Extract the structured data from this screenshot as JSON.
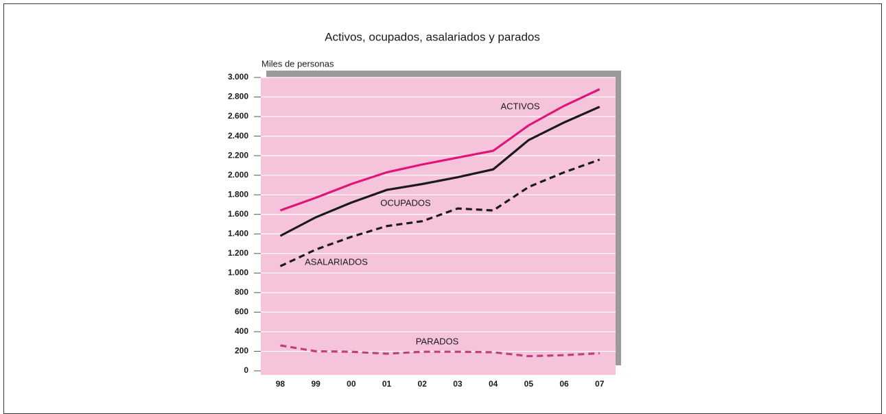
{
  "chart_data": {
    "type": "line",
    "title": "Activos, ocupados, asalariados y parados",
    "y_label": "Miles de personas",
    "categories": [
      "98",
      "99",
      "00",
      "01",
      "02",
      "03",
      "04",
      "05",
      "06",
      "07"
    ],
    "series": [
      {
        "name": "ACTIVOS",
        "color": "#e0157a",
        "dash": false,
        "values": [
          1640,
          1770,
          1910,
          2030,
          2110,
          2180,
          2250,
          2510,
          2710,
          2880
        ]
      },
      {
        "name": "OCUPADOS",
        "color": "#1a1a1a",
        "dash": false,
        "values": [
          1380,
          1570,
          1720,
          1850,
          1910,
          1980,
          2060,
          2360,
          2540,
          2700
        ]
      },
      {
        "name": "ASALARIADOS",
        "color": "#1a1a1a",
        "dash": true,
        "values": [
          1070,
          1240,
          1370,
          1480,
          1530,
          1660,
          1640,
          1880,
          2030,
          2160
        ]
      },
      {
        "name": "PARADOS",
        "color": "#c0407a",
        "dash": true,
        "values": [
          260,
          200,
          195,
          175,
          195,
          195,
          190,
          150,
          160,
          180
        ]
      }
    ],
    "ylim": [
      0,
      3000
    ],
    "yticks": [
      0,
      200,
      400,
      600,
      800,
      {
        "value": 1000,
        "label": "1.000"
      },
      {
        "value": 1200,
        "label": "1.200"
      },
      {
        "value": 1400,
        "label": "1.400"
      },
      {
        "value": 1600,
        "label": "1.600"
      },
      {
        "value": 1800,
        "label": "1.800"
      },
      {
        "value": 2000,
        "label": "2.000"
      },
      {
        "value": 2200,
        "label": "2.200"
      },
      {
        "value": 2400,
        "label": "2.400"
      },
      {
        "value": 2600,
        "label": "2.600"
      },
      {
        "value": 2800,
        "label": "2.800"
      },
      {
        "value": 3000,
        "label": "3.000"
      }
    ],
    "grid": true,
    "plot_color": "#f5c3da"
  }
}
